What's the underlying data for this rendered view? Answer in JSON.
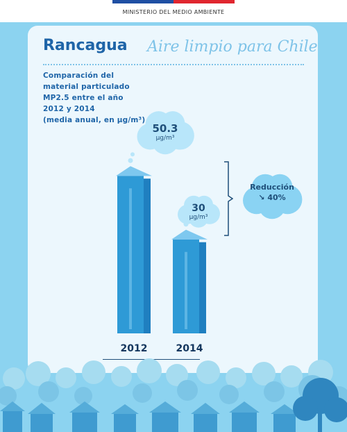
{
  "header": {
    "ministry": "MINISTERIO DEL MEDIO AMBIENTE"
  },
  "headline": {
    "city": "Rancagua",
    "slogan": "Aire limpio para Chile"
  },
  "subtitle": {
    "line1": "Comparación del",
    "line2": "material particulado",
    "line3": "MP2.5 entre el año",
    "line4": "2012 y 2014",
    "line5": "(media anual, en μg/m³)"
  },
  "reduction": {
    "label": "Reducción",
    "value": "↘ 40%"
  },
  "colors": {
    "bar_front": "#2e9ad6",
    "bar_side": "#1f7fc0",
    "bar_roof": "#7ec8ef",
    "cloud": "#b8e6fa",
    "reduction_cloud": "#8ad3f3",
    "skyline_back": "#8ad0ea",
    "skyline_front": "#4aa6d6"
  },
  "chart_data": {
    "type": "bar",
    "categories": [
      "2012",
      "2014"
    ],
    "values": [
      50.3,
      30
    ],
    "value_labels": [
      "50.3",
      "30"
    ],
    "unit_label": "μg/m³",
    "ylim": [
      0,
      55
    ],
    "grid": false
  }
}
